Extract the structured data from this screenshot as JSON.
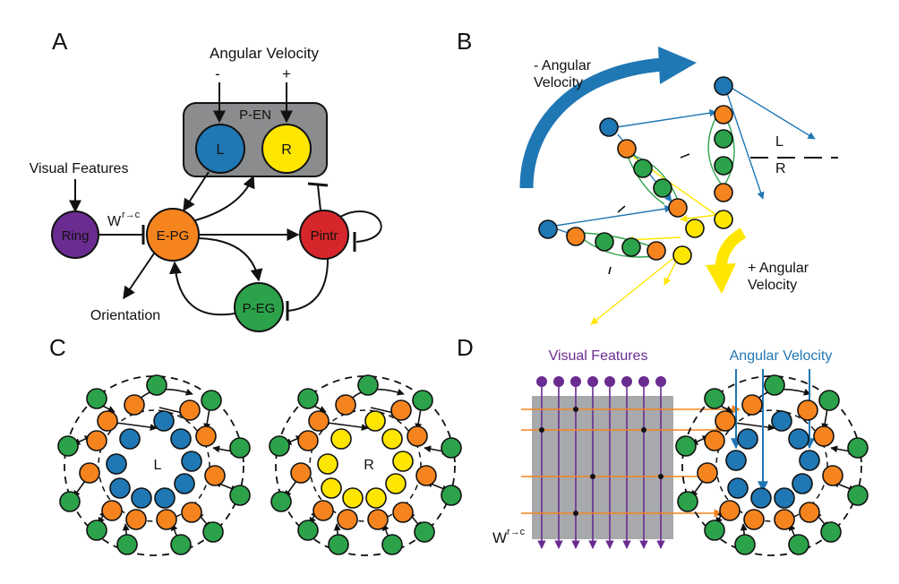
{
  "colors": {
    "blue": "#1f77b4",
    "yellow": "#ffe600",
    "orange": "#f5841f",
    "green": "#2ca24a",
    "purple": "#6a2c91",
    "red": "#d7262b",
    "gray": "#a7a9ac",
    "dark_gray": "#8a8c8e"
  },
  "panel_a": {
    "letter": "A",
    "angular_velocity": "Angular Velocity",
    "minus": "-",
    "plus": "+",
    "pen_label": "P-EN",
    "l_label": "L",
    "r_label": "R",
    "visual_features": "Visual Features",
    "ring": "Ring",
    "weight": "W",
    "weight_sup": "r→c",
    "epg": "E-PG",
    "pintr": "Pintr",
    "peg": "P-EG",
    "orientation": "Orientation"
  },
  "panel_b": {
    "letter": "B",
    "minus_angular": "- Angular",
    "minus_velocity": "Velocity",
    "plus_angular": "+ Angular",
    "plus_velocity": "Velocity",
    "l_label": "L",
    "r_label": "R"
  },
  "panel_c": {
    "letter": "C",
    "l_label": "L",
    "r_label": "R"
  },
  "panel_d": {
    "letter": "D",
    "visual_features": "Visual Features",
    "angular_velocity": "Angular Velocity",
    "weight": "W",
    "weight_sup": "r→c"
  }
}
